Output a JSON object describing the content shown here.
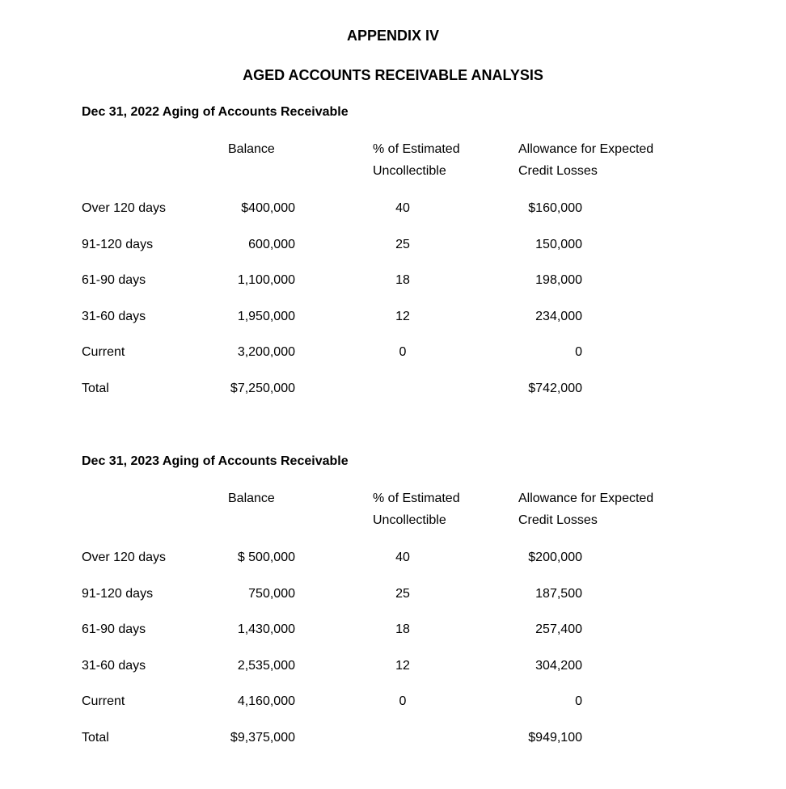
{
  "title": "APPENDIX IV",
  "subtitle": "AGED ACCOUNTS RECEIVABLE ANALYSIS",
  "sections": [
    {
      "heading": "Dec 31, 2022 Aging of Accounts Receivable",
      "columns": {
        "balance": "Balance",
        "pct_1": "% of Estimated",
        "pct_2": "Uncollectible",
        "allowance_1": "Allowance for Expected",
        "allowance_2": "Credit Losses"
      },
      "rows": [
        {
          "label": "Over 120 days",
          "balance": "$400,000",
          "pct": "40",
          "allowance": "$160,000"
        },
        {
          "label": "91-120 days",
          "balance": "600,000",
          "pct": "25",
          "allowance": "150,000"
        },
        {
          "label": "61-90 days",
          "balance": "1,100,000",
          "pct": "18",
          "allowance": "198,000"
        },
        {
          "label": "31-60 days",
          "balance": "1,950,000",
          "pct": "12",
          "allowance": "234,000"
        },
        {
          "label": "Current",
          "balance": "3,200,000",
          "pct": "0",
          "allowance": "0"
        },
        {
          "label": "Total",
          "balance": "$7,250,000",
          "pct": "",
          "allowance": "$742,000"
        }
      ]
    },
    {
      "heading": "Dec 31, 2023 Aging of Accounts Receivable",
      "columns": {
        "balance": "Balance",
        "pct_1": "% of Estimated",
        "pct_2": "Uncollectible",
        "allowance_1": "Allowance for Expected",
        "allowance_2": "Credit Losses"
      },
      "rows": [
        {
          "label": "Over 120 days",
          "balance": "$ 500,000",
          "pct": "40",
          "allowance": "$200,000"
        },
        {
          "label": "91-120 days",
          "balance": "750,000",
          "pct": "25",
          "allowance": "187,500"
        },
        {
          "label": "61-90 days",
          "balance": "1,430,000",
          "pct": "18",
          "allowance": "257,400"
        },
        {
          "label": "31-60 days",
          "balance": "2,535,000",
          "pct": "12",
          "allowance": "304,200"
        },
        {
          "label": "Current",
          "balance": "4,160,000",
          "pct": "0",
          "allowance": "0"
        },
        {
          "label": "Total",
          "balance": "$9,375,000",
          "pct": "",
          "allowance": "$949,100"
        }
      ]
    }
  ]
}
